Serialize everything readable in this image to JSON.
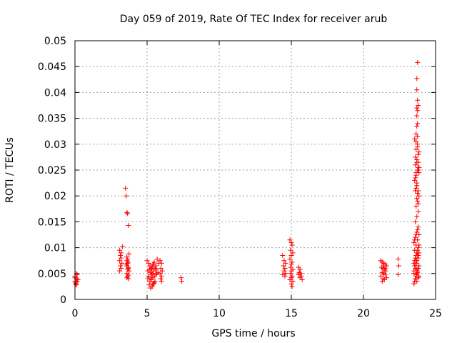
{
  "chart_data": {
    "type": "scatter",
    "title": "Day 059 of 2019, Rate Of TEC Index for receiver arub",
    "xlabel": "GPS time / hours",
    "ylabel": "ROTI / TECUs",
    "xlim": [
      0,
      25
    ],
    "ylim": [
      0,
      0.05
    ],
    "xticks": [
      0,
      5,
      10,
      15,
      20,
      25
    ],
    "xtick_labels": [
      "0",
      "5",
      "10",
      "15",
      "20",
      "25"
    ],
    "yticks": [
      0,
      0.005,
      0.01,
      0.015,
      0.02,
      0.025,
      0.03,
      0.035,
      0.04,
      0.045,
      0.05
    ],
    "ytick_labels": [
      "0",
      "0.005",
      "0.01",
      "0.015",
      "0.02",
      "0.025",
      "0.03",
      "0.035",
      "0.04",
      "0.045",
      "0.05"
    ],
    "grid": true,
    "marker": "plus",
    "color": "#ff0000",
    "series": [
      {
        "name": "ROTI",
        "x": [
          0.0,
          0.05,
          0.1,
          0.15,
          0.0,
          0.1,
          0.05,
          0.2,
          0.1,
          0.0,
          0.15,
          3.1,
          3.15,
          3.2,
          3.1,
          3.25,
          3.15,
          3.2,
          3.1,
          3.3,
          3.2,
          3.5,
          3.55,
          3.6,
          3.65,
          3.7,
          3.75,
          3.6,
          3.65,
          3.7,
          3.55,
          3.6,
          3.7,
          3.65,
          3.75,
          3.6,
          3.7,
          3.65,
          3.6,
          3.7,
          3.65,
          3.6,
          3.7,
          5.0,
          5.1,
          5.2,
          5.3,
          5.4,
          5.5,
          5.6,
          5.7,
          5.8,
          5.05,
          5.15,
          5.25,
          5.35,
          5.45,
          5.55,
          5.65,
          5.1,
          5.2,
          5.3,
          5.4,
          5.5,
          5.6,
          5.2,
          5.3,
          5.4,
          5.5,
          5.15,
          5.35,
          5.45,
          5.25,
          5.55,
          5.05,
          5.65,
          5.75,
          5.35,
          5.45,
          5.25,
          5.9,
          6.0,
          5.95,
          6.05,
          5.9,
          6.0,
          5.95,
          6.0,
          7.35,
          7.4,
          14.4,
          14.5,
          14.6,
          14.45,
          14.55,
          14.5,
          14.6,
          14.4,
          14.55,
          14.9,
          15.0,
          15.05,
          14.95,
          15.1,
          15.0,
          14.9,
          15.05,
          15.0,
          14.95,
          15.1,
          15.0,
          14.95,
          15.05,
          15.0,
          14.9,
          15.1,
          15.0,
          15.05,
          15.5,
          15.6,
          15.55,
          15.65,
          15.7,
          15.6,
          15.75,
          15.5,
          21.2,
          21.3,
          21.4,
          21.5,
          21.6,
          21.25,
          21.35,
          21.45,
          21.55,
          21.3,
          21.4,
          21.5,
          21.2,
          21.6,
          21.35,
          21.45,
          21.3,
          21.5,
          21.4,
          22.4,
          22.45,
          22.4,
          23.5,
          23.55,
          23.6,
          23.65,
          23.7,
          23.75,
          23.8,
          23.85,
          23.5,
          23.55,
          23.6,
          23.65,
          23.7,
          23.75,
          23.8,
          23.85,
          23.5,
          23.55,
          23.6,
          23.65,
          23.7,
          23.75,
          23.8,
          23.85,
          23.5,
          23.6,
          23.7,
          23.8,
          23.55,
          23.65,
          23.75,
          23.85,
          23.6,
          23.7,
          23.8,
          23.65,
          23.75,
          23.85,
          23.6,
          23.7,
          23.55,
          23.65,
          23.75,
          23.6,
          23.7,
          23.8,
          23.65,
          23.75,
          23.55,
          23.65,
          23.75,
          23.85,
          23.6,
          23.7,
          23.8,
          23.65,
          23.6,
          23.7,
          23.65,
          23.75,
          23.7,
          23.8,
          23.65,
          23.75,
          23.7,
          23.75,
          23.7,
          23.75,
          23.7,
          23.8,
          23.75,
          23.7,
          23.75,
          23.7,
          23.5,
          23.6,
          23.7,
          23.8,
          23.55,
          23.65,
          23.75,
          23.85,
          23.6,
          23.7,
          23.8,
          23.65,
          23.75,
          23.7,
          23.8,
          23.85,
          23.8,
          23.85,
          23.8
        ],
        "y": [
          0.0035,
          0.003,
          0.004,
          0.0035,
          0.0045,
          0.005,
          0.0032,
          0.0038,
          0.0028,
          0.0042,
          0.0048,
          0.0095,
          0.0085,
          0.008,
          0.0075,
          0.007,
          0.0065,
          0.006,
          0.0055,
          0.0102,
          0.009,
          0.0215,
          0.02,
          0.0168,
          0.0166,
          0.0143,
          0.0088,
          0.0082,
          0.0078,
          0.0072,
          0.0068,
          0.0065,
          0.006,
          0.0058,
          0.0055,
          0.005,
          0.0047,
          0.0045,
          0.0042,
          0.004,
          0.007,
          0.0075,
          0.0062,
          0.0075,
          0.007,
          0.0065,
          0.006,
          0.0068,
          0.0072,
          0.0065,
          0.0078,
          0.007,
          0.0055,
          0.0058,
          0.0052,
          0.005,
          0.0055,
          0.006,
          0.0058,
          0.0045,
          0.004,
          0.0048,
          0.0042,
          0.0045,
          0.005,
          0.0035,
          0.0038,
          0.003,
          0.0032,
          0.0028,
          0.0025,
          0.003,
          0.0022,
          0.0035,
          0.004,
          0.0048,
          0.0052,
          0.0062,
          0.0068,
          0.0058,
          0.0075,
          0.007,
          0.006,
          0.0055,
          0.005,
          0.0045,
          0.004,
          0.0035,
          0.0042,
          0.0035,
          0.0085,
          0.0075,
          0.007,
          0.0065,
          0.006,
          0.0055,
          0.005,
          0.0048,
          0.0045,
          0.0115,
          0.011,
          0.0105,
          0.0095,
          0.009,
          0.0085,
          0.0078,
          0.0072,
          0.0068,
          0.0062,
          0.0058,
          0.0055,
          0.005,
          0.0045,
          0.0042,
          0.0038,
          0.0035,
          0.003,
          0.0025,
          0.0062,
          0.0058,
          0.0052,
          0.005,
          0.0045,
          0.0042,
          0.0038,
          0.0048,
          0.0075,
          0.0072,
          0.007,
          0.0068,
          0.0065,
          0.0062,
          0.006,
          0.0058,
          0.0055,
          0.0052,
          0.005,
          0.0048,
          0.0045,
          0.0042,
          0.004,
          0.0038,
          0.0035,
          0.006,
          0.0065,
          0.0078,
          0.0065,
          0.0048,
          0.003,
          0.0035,
          0.004,
          0.0045,
          0.005,
          0.0055,
          0.006,
          0.0065,
          0.007,
          0.0075,
          0.008,
          0.0085,
          0.009,
          0.0095,
          0.01,
          0.0105,
          0.011,
          0.0115,
          0.012,
          0.0125,
          0.013,
          0.0135,
          0.014,
          0.0045,
          0.0055,
          0.0065,
          0.0075,
          0.0085,
          0.0095,
          0.0105,
          0.0115,
          0.0125,
          0.015,
          0.016,
          0.017,
          0.018,
          0.019,
          0.02,
          0.021,
          0.022,
          0.023,
          0.024,
          0.025,
          0.026,
          0.027,
          0.028,
          0.029,
          0.03,
          0.031,
          0.0305,
          0.0295,
          0.0285,
          0.0275,
          0.0265,
          0.0255,
          0.0245,
          0.0235,
          0.0225,
          0.0215,
          0.0205,
          0.0195,
          0.0185,
          0.032,
          0.0315,
          0.0335,
          0.034,
          0.0355,
          0.0365,
          0.037,
          0.0375,
          0.0385,
          0.0427,
          0.0458,
          0.0405,
          0.005,
          0.006,
          0.007,
          0.008,
          0.0065,
          0.0075,
          0.0085,
          0.009,
          0.004,
          0.0035,
          0.0042,
          0.0048,
          0.0052,
          0.0058,
          0.0265,
          0.0255,
          0.025,
          0.0245,
          0.021
        ]
      }
    ]
  }
}
